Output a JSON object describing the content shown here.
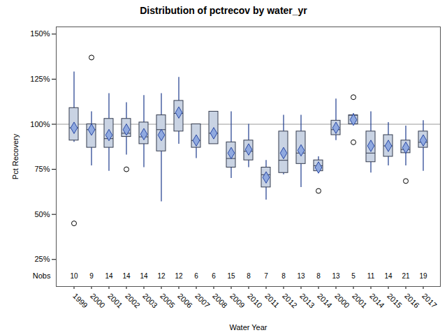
{
  "chart_data": {
    "type": "box",
    "title": "Distribution of pctrecov by water_yr",
    "x_label": "Water Year",
    "y_label": "Pct Recovery",
    "categories": [
      "1999",
      "2000",
      "2001",
      "2002",
      "2003",
      "2005",
      "2006",
      "2007",
      "2008",
      "2009",
      "2010",
      "2011",
      "2012",
      "2013",
      "2014",
      "2000",
      "2001",
      "2014",
      "2015",
      "2016",
      "2017"
    ],
    "whisker_low": [
      90,
      77,
      74,
      83,
      76,
      57,
      89,
      81,
      89,
      70,
      76,
      58,
      72,
      65,
      74,
      91,
      100,
      73,
      77,
      77,
      74
    ],
    "q1": [
      91,
      87,
      87,
      93,
      89,
      85,
      96,
      87,
      89,
      76,
      80,
      65,
      73,
      78,
      74,
      94,
      100,
      79,
      82,
      84,
      87
    ],
    "median": [
      98,
      97,
      92,
      95,
      93,
      97,
      106,
      91,
      95,
      81,
      85,
      72,
      80,
      84,
      77,
      97,
      105,
      84,
      88,
      86,
      90
    ],
    "q3": [
      109,
      100,
      103,
      103,
      101,
      105,
      113,
      100,
      107,
      90,
      91,
      76,
      96,
      96,
      80,
      102,
      105,
      96,
      94,
      91,
      96
    ],
    "whisker_high": [
      129,
      107,
      117,
      112,
      116,
      117,
      126,
      100,
      107,
      107,
      100,
      80,
      105,
      105,
      82,
      114,
      106,
      107,
      101,
      99,
      102
    ],
    "mean": [
      98,
      97,
      94,
      97,
      94.5,
      94,
      106.5,
      91,
      95,
      84,
      86,
      70.5,
      84,
      85.5,
      76,
      98,
      102.5,
      88,
      88,
      87,
      91
    ],
    "outliers": [
      [
        45
      ],
      [
        137
      ],
      [],
      [
        75
      ],
      [],
      [],
      [],
      [],
      [],
      [],
      [],
      [],
      [],
      [],
      [
        63
      ],
      [],
      [
        90,
        115
      ],
      [],
      [],
      [
        68.5
      ],
      []
    ],
    "nobs_label": "Nobs",
    "nobs": [
      10,
      9,
      14,
      14,
      14,
      12,
      12,
      6,
      6,
      15,
      8,
      7,
      8,
      13,
      8,
      13,
      5,
      11,
      14,
      21,
      19
    ],
    "reference_line": 100,
    "color": "#c9d3e3",
    "ylim": [
      10,
      154
    ],
    "yticks": [
      {
        "value": 25,
        "label": "25%"
      },
      {
        "value": 50,
        "label": "50%"
      },
      {
        "value": 75,
        "label": "75%"
      },
      {
        "value": 100,
        "label": "100%"
      },
      {
        "value": 125,
        "label": "125%"
      },
      {
        "value": 150,
        "label": "150%"
      }
    ]
  }
}
